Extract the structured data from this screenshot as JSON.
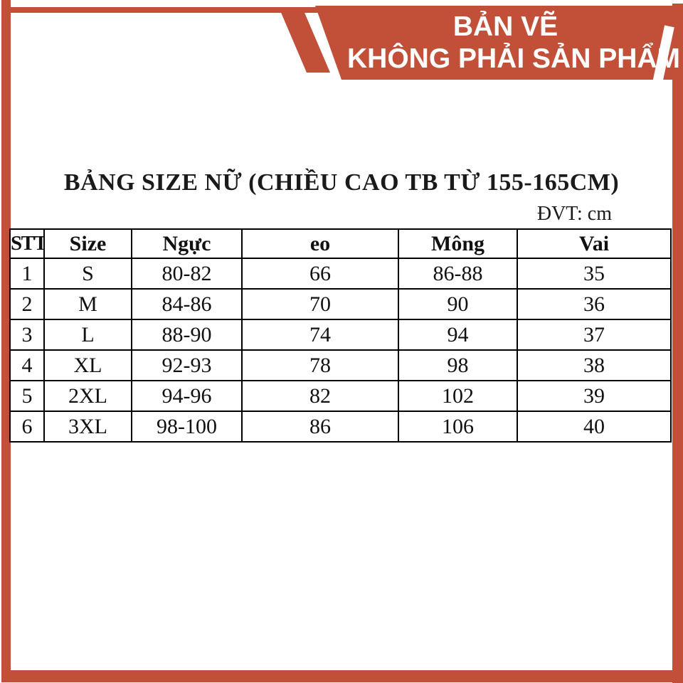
{
  "banner": {
    "line1": "BẢN VẼ",
    "line2": "KHÔNG PHẢI SẢN PHẨM"
  },
  "title": "BẢNG SIZE NỮ (CHIỀU CAO TB TỪ 155-165CM)",
  "unit_label": "ĐVT: cm",
  "colors": {
    "accent_red": "#c25039",
    "text": "#1a1a1a",
    "table_border": "#000000",
    "banner_text": "#ffffff"
  },
  "size_table": {
    "columns": [
      "STT",
      "Size",
      "Ngực",
      "eo",
      "Mông",
      "Vai"
    ],
    "rows": [
      [
        "1",
        "S",
        "80-82",
        "66",
        "86-88",
        "35"
      ],
      [
        "2",
        "M",
        "84-86",
        "70",
        "90",
        "36"
      ],
      [
        "3",
        "L",
        "88-90",
        "74",
        "94",
        "37"
      ],
      [
        "4",
        "XL",
        "92-93",
        "78",
        "98",
        "38"
      ],
      [
        "5",
        "2XL",
        "94-96",
        "82",
        "102",
        "39"
      ],
      [
        "6",
        "3XL",
        "98-100",
        "86",
        "106",
        "40"
      ]
    ]
  }
}
